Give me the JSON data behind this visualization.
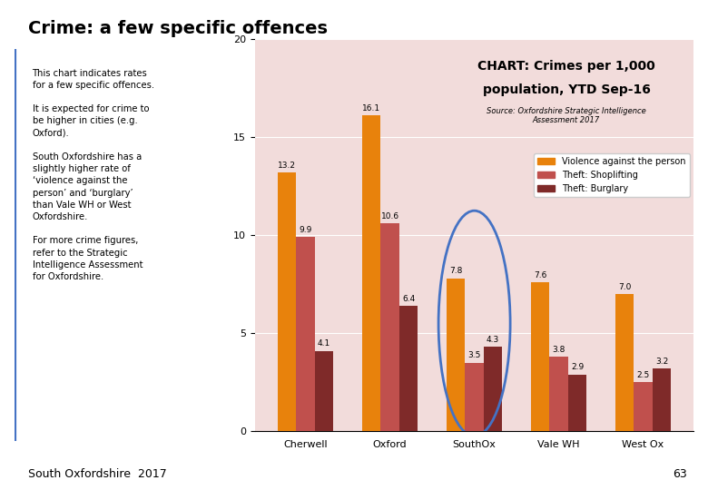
{
  "title": "Crime: a few specific offences",
  "chart_title": "CHART: Crimes per 1,000\npopulation, YTD Sep-16",
  "chart_source": "Source: Oxfordshire Strategic Intelligence\nAssessment 2017",
  "categories": [
    "Cherwell",
    "Oxford",
    "SouthOx",
    "Vale WH",
    "West Ox"
  ],
  "series": {
    "Violence against the person": [
      13.2,
      16.1,
      7.8,
      7.6,
      7.0
    ],
    "Theft: Shoplifting": [
      9.9,
      10.6,
      3.5,
      3.8,
      2.5
    ],
    "Theft: Burglary": [
      4.1,
      6.4,
      4.3,
      2.9,
      3.2
    ]
  },
  "colors": {
    "Violence against the person": "#E8820C",
    "Theft: Shoplifting": "#C0504D",
    "Theft: Burglary": "#7F2A29"
  },
  "ylim": [
    0,
    20
  ],
  "yticks": [
    0,
    5,
    10,
    15,
    20
  ],
  "background_color": "#F2DCDB",
  "plot_bg": "#F2DCDB",
  "left_panel_bg": "#C6C0DC",
  "page_bg": "#FFFFFF",
  "left_text_lines": [
    "This chart indicates rates",
    "for a few specific offences.",
    "",
    "It is expected for crime to",
    "be higher in cities (e.g.",
    "Oxford).",
    "",
    "South Oxfordshire has a",
    "slightly higher rate of",
    "‘violence against the",
    "person’ and ‘burglary’",
    "than Vale WH or West",
    "Oxfordshire.",
    "",
    "For more crime figures,",
    "refer to the Strategic",
    "Intelligence Assessment",
    "for Oxfordshire."
  ],
  "footer_text": "South Oxfordshire  2017",
  "page_number": "63",
  "header_border_color": "#4472C4",
  "circle_color": "#4472C4",
  "title_box_bg": "#F2DCDB",
  "title_box_border": "#C0504D"
}
